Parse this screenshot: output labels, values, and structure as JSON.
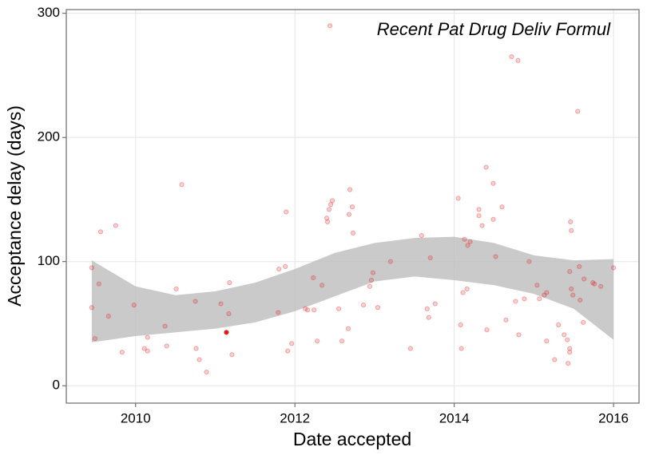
{
  "chart_data": {
    "type": "scatter",
    "title": "Recent Pat Drug Deliv Formul",
    "x_label": "Date accepted",
    "y_label": "Acceptance delay (days)",
    "xlim": [
      2009.13,
      2016.32
    ],
    "xticks": [
      2010,
      2012,
      2014,
      2016
    ],
    "ylim": [
      -14,
      303
    ],
    "yticks": [
      0,
      100,
      200,
      300
    ],
    "grid": true,
    "color": "#e41a1c",
    "band_color": "#bdbdbd",
    "x": [
      2009.45,
      2009.45,
      2009.49,
      2009.54,
      2009.56,
      2009.66,
      2009.75,
      2009.83,
      2009.98,
      2010.11,
      2010.15,
      2010.15,
      2010.37,
      2010.39,
      2010.51,
      2010.58,
      2010.75,
      2010.76,
      2010.8,
      2010.89,
      2011.07,
      2011.17,
      2011.18,
      2011.21,
      2011.79,
      2011.8,
      2011.88,
      2011.89,
      2011.91,
      2011.96,
      2012.13,
      2012.16,
      2012.23,
      2012.24,
      2012.28,
      2012.34,
      2012.4,
      2012.41,
      2012.43,
      2012.45,
      2012.47,
      2012.44,
      2012.55,
      2012.59,
      2012.67,
      2012.68,
      2012.69,
      2012.72,
      2012.73,
      2012.86,
      2012.94,
      2012.96,
      2012.98,
      2013.04,
      2013.2,
      2013.45,
      2013.59,
      2013.66,
      2013.68,
      2013.7,
      2013.76,
      2014.05,
      2014.08,
      2014.09,
      2014.11,
      2014.13,
      2014.16,
      2014.17,
      2014.2,
      2014.31,
      2014.31,
      2014.35,
      2014.4,
      2014.41,
      2014.49,
      2014.49,
      2014.52,
      2014.6,
      2014.65,
      2014.72,
      2014.77,
      2014.8,
      2014.81,
      2014.88,
      2014.94,
      2015.04,
      2015.07,
      2015.13,
      2015.16,
      2015.16,
      2015.26,
      2015.31,
      2015.38,
      2015.42,
      2015.43,
      2015.45,
      2015.45,
      2015.45,
      2015.46,
      2015.47,
      2015.47,
      2015.49,
      2015.55,
      2015.57,
      2015.58,
      2015.62,
      2015.63,
      2015.74,
      2015.76,
      2015.84,
      2016.0
    ],
    "values": [
      95,
      63,
      38,
      82,
      124,
      56,
      129,
      27,
      65,
      30,
      39,
      28,
      48,
      32,
      78,
      162,
      68,
      30,
      21,
      11,
      66,
      58,
      83,
      25,
      59,
      94,
      96,
      140,
      28,
      34,
      62,
      61,
      87,
      61,
      36,
      81,
      135,
      132,
      142,
      146,
      149,
      290,
      62,
      36,
      46,
      138,
      158,
      144,
      123,
      65,
      80,
      85,
      91,
      63,
      100,
      30,
      121,
      62,
      55,
      103,
      66,
      151,
      49,
      30,
      75,
      118,
      78,
      113,
      116,
      142,
      137,
      129,
      176,
      45,
      163,
      134,
      104,
      144,
      53,
      265,
      68,
      262,
      41,
      70,
      100,
      81,
      70,
      73,
      75,
      36,
      21,
      49,
      41,
      37,
      18,
      30,
      27,
      92,
      132,
      125,
      78,
      73,
      221,
      96,
      69,
      51,
      86,
      83,
      82,
      80,
      95
    ],
    "highlight": {
      "x": 2011.14,
      "value": 43
    },
    "band": {
      "x": [
        2009.45,
        2010,
        2010.5,
        2011,
        2011.5,
        2012,
        2012.5,
        2013,
        2013.5,
        2014,
        2014.5,
        2015,
        2015.5,
        2016
      ],
      "upper": [
        101,
        80,
        73,
        76,
        83,
        94,
        107,
        115,
        119,
        120,
        115,
        105,
        101,
        102
      ],
      "lower": [
        35,
        40,
        43,
        46,
        51,
        60,
        72,
        84,
        88,
        85,
        81,
        74,
        62,
        37
      ]
    }
  }
}
